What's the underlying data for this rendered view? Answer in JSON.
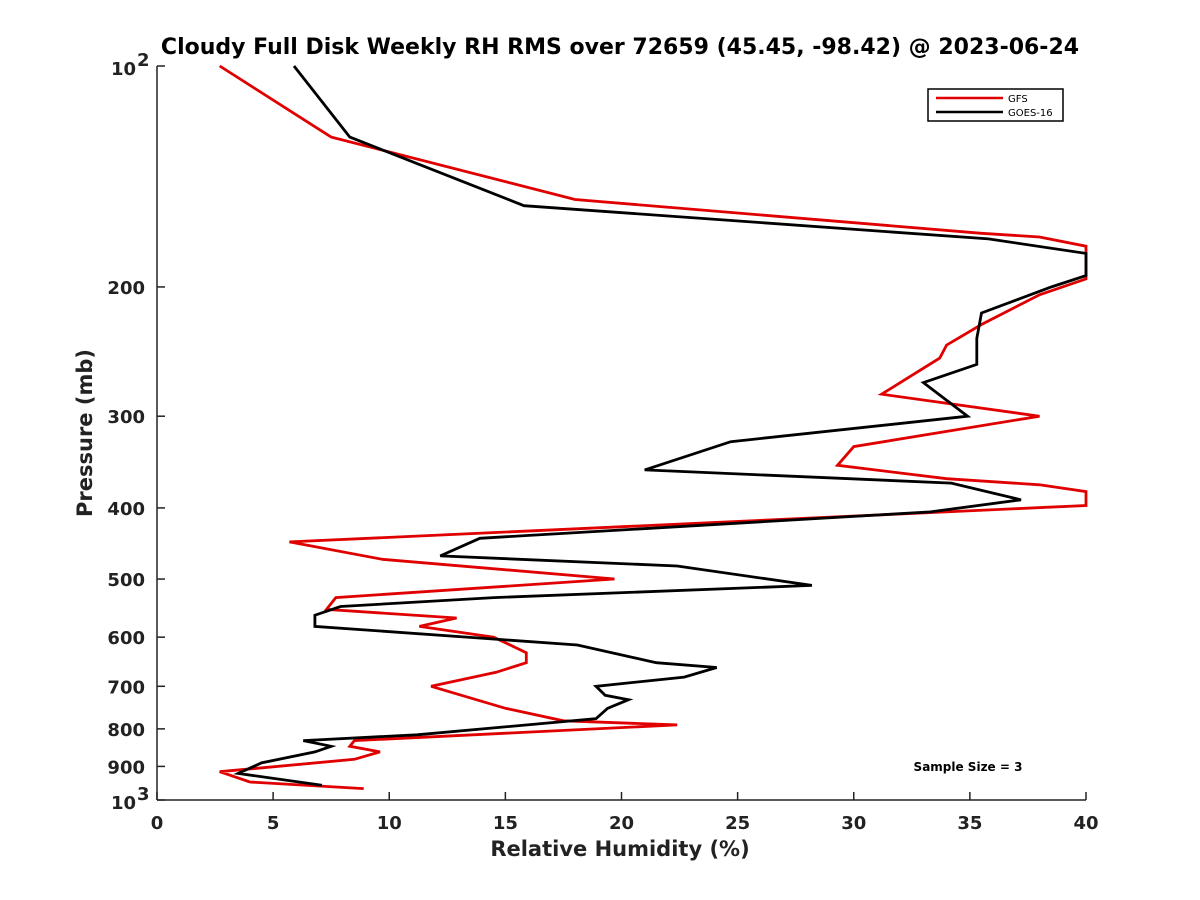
{
  "chart_data": {
    "type": "line",
    "title": "Cloudy Full Disk Weekly RH RMS over 72659 (45.45, -98.42) @ 2023-06-24",
    "xlabel": "Relative Humidity (%)",
    "ylabel": "Pressure (mb)",
    "xlim": [
      0,
      40
    ],
    "ylim": [
      100,
      1000
    ],
    "y_scale": "log",
    "y_reversed": true,
    "x_ticks": [
      "0",
      "5",
      "10",
      "15",
      "20",
      "25",
      "30",
      "35",
      "40"
    ],
    "y_ticks": [
      {
        "value": 100,
        "base": "10",
        "exp": "2"
      },
      {
        "value": 200,
        "label": "200"
      },
      {
        "value": 300,
        "label": "300"
      },
      {
        "value": 400,
        "label": "400"
      },
      {
        "value": 500,
        "label": "500"
      },
      {
        "value": 600,
        "label": "600"
      },
      {
        "value": 700,
        "label": "700"
      },
      {
        "value": 800,
        "label": "800"
      },
      {
        "value": 900,
        "label": "900"
      },
      {
        "value": 1000,
        "base": "10",
        "exp": "3"
      }
    ],
    "legend_position": "top-right",
    "annotation": "Sample Size = 3",
    "series": [
      {
        "name": "GFS",
        "color": "#e00000",
        "points": [
          [
            2.7,
            100
          ],
          [
            7.5,
            125
          ],
          [
            18.0,
            152
          ],
          [
            35.5,
            169
          ],
          [
            38.0,
            171
          ],
          [
            40.0,
            176
          ],
          [
            40.0,
            195
          ],
          [
            38.0,
            205
          ],
          [
            35.5,
            225
          ],
          [
            34.0,
            240
          ],
          [
            33.7,
            250
          ],
          [
            31.2,
            280
          ],
          [
            38.0,
            300
          ],
          [
            30.0,
            330
          ],
          [
            29.3,
            350
          ],
          [
            34.0,
            365
          ],
          [
            38.0,
            372
          ],
          [
            40.0,
            380
          ],
          [
            40.0,
            397
          ],
          [
            5.7,
            445
          ],
          [
            9.7,
            470
          ],
          [
            19.7,
            500
          ],
          [
            7.7,
            530
          ],
          [
            7.3,
            550
          ],
          [
            12.9,
            565
          ],
          [
            11.3,
            580
          ],
          [
            14.5,
            600
          ],
          [
            15.9,
            630
          ],
          [
            15.9,
            650
          ],
          [
            14.6,
            670
          ],
          [
            11.8,
            700
          ],
          [
            15.0,
            750
          ],
          [
            17.5,
            780
          ],
          [
            22.4,
            790
          ],
          [
            8.5,
            830
          ],
          [
            8.3,
            845
          ],
          [
            9.6,
            860
          ],
          [
            8.5,
            880
          ],
          [
            2.7,
            915
          ],
          [
            4.0,
            945
          ],
          [
            8.9,
            965
          ]
        ]
      },
      {
        "name": "GOES-16",
        "color": "#000000",
        "points": [
          [
            5.9,
            100
          ],
          [
            8.3,
            125
          ],
          [
            15.8,
            155
          ],
          [
            35.8,
            172
          ],
          [
            40.0,
            180
          ],
          [
            40.0,
            193
          ],
          [
            38.5,
            200
          ],
          [
            35.5,
            217
          ],
          [
            35.3,
            235
          ],
          [
            35.3,
            255
          ],
          [
            33.0,
            270
          ],
          [
            34.9,
            300
          ],
          [
            24.7,
            325
          ],
          [
            21.0,
            355
          ],
          [
            34.2,
            370
          ],
          [
            37.2,
            390
          ],
          [
            33.3,
            405
          ],
          [
            13.9,
            440
          ],
          [
            12.2,
            465
          ],
          [
            22.4,
            480
          ],
          [
            28.2,
            510
          ],
          [
            14.5,
            530
          ],
          [
            7.9,
            545
          ],
          [
            6.8,
            560
          ],
          [
            6.8,
            580
          ],
          [
            18.1,
            615
          ],
          [
            21.5,
            650
          ],
          [
            24.1,
            660
          ],
          [
            22.7,
            680
          ],
          [
            18.9,
            700
          ],
          [
            19.3,
            720
          ],
          [
            20.3,
            730
          ],
          [
            19.4,
            750
          ],
          [
            18.9,
            775
          ],
          [
            11.2,
            815
          ],
          [
            6.3,
            830
          ],
          [
            7.5,
            845
          ],
          [
            6.8,
            860
          ],
          [
            4.5,
            890
          ],
          [
            3.5,
            920
          ],
          [
            7.1,
            955
          ]
        ]
      }
    ]
  }
}
